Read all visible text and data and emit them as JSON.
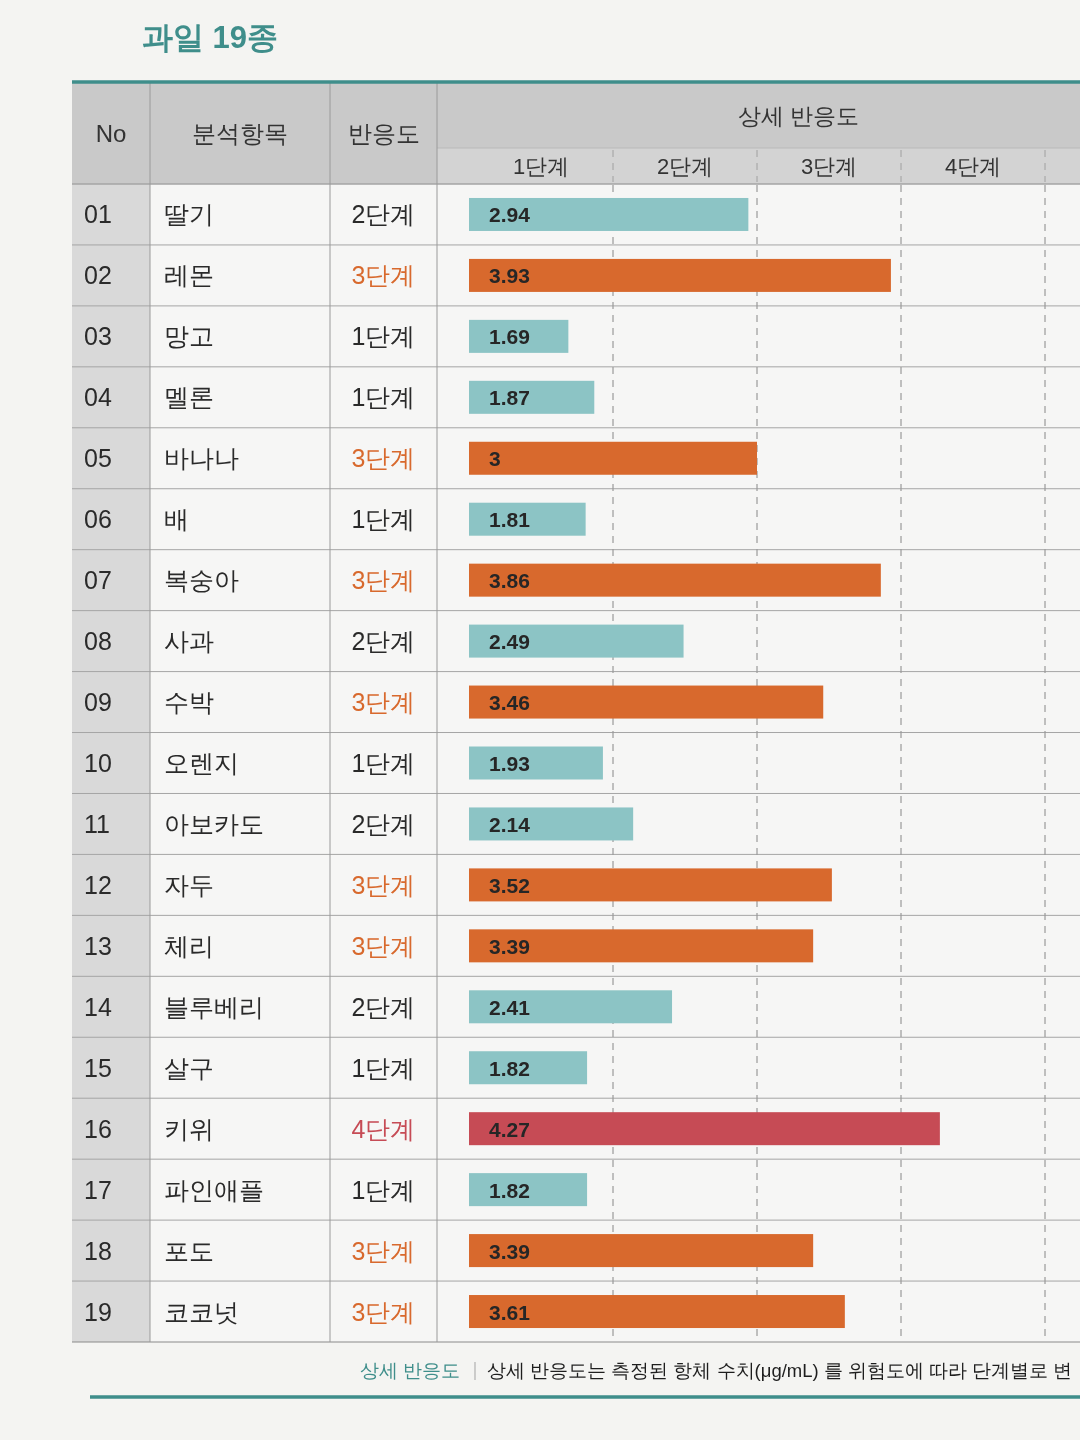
{
  "chart_data": {
    "type": "bar",
    "orientation": "horizontal",
    "title": "과일 19종",
    "xlabel": "상세 반응도",
    "ylabel": "분석항목",
    "categories": [
      "딸기",
      "레몬",
      "망고",
      "멜론",
      "바나나",
      "배",
      "복숭아",
      "사과",
      "수박",
      "오렌지",
      "아보카도",
      "자두",
      "체리",
      "블루베리",
      "살구",
      "키위",
      "파인애플",
      "포도",
      "코코넛"
    ],
    "values": [
      2.94,
      3.93,
      1.69,
      1.87,
      3,
      1.81,
      3.86,
      2.49,
      3.46,
      1.93,
      2.14,
      3.52,
      3.39,
      2.41,
      1.82,
      4.27,
      1.82,
      3.39,
      3.61
    ],
    "colors": [
      "#8cc4c5",
      "#d8692d",
      "#8cc4c5",
      "#8cc4c5",
      "#d8692d",
      "#8cc4c5",
      "#d8692d",
      "#8cc4c5",
      "#d8692d",
      "#8cc4c5",
      "#8cc4c5",
      "#d8692d",
      "#d8692d",
      "#8cc4c5",
      "#8cc4c5",
      "#c64b55",
      "#8cc4c5",
      "#d8692d",
      "#d8692d"
    ],
    "xlim": [
      1,
      5
    ],
    "ref_lines": [
      {
        "axis": "x",
        "value": 2,
        "line_style": "dashed"
      },
      {
        "axis": "x",
        "value": 3,
        "line_style": "dashed"
      },
      {
        "axis": "x",
        "value": 4,
        "line_style": "dashed"
      },
      {
        "axis": "x",
        "value": 5,
        "line_style": "dashed"
      }
    ],
    "data_labels": true,
    "annotations": [
      "No",
      "반응도",
      "1단계",
      "2단계",
      "3단계",
      "4단계",
      "01",
      "02",
      "03",
      "04",
      "05",
      "06",
      "07",
      "08",
      "09",
      "10",
      "11",
      "12",
      "13",
      "14",
      "15",
      "16",
      "17",
      "18",
      "19",
      "2단계",
      "3단계",
      "1단계",
      "1단계",
      "3단계",
      "1단계",
      "3단계",
      "2단계",
      "3단계",
      "1단계",
      "2단계",
      "3단계",
      "3단계",
      "2단계",
      "1단계",
      "4단계",
      "1단계",
      "3단계",
      "3단계",
      "상세 반응도",
      "상세 반응도는 측정된 항체 수치(μg/mL) 를 위험도에 따라 단계별로 변"
    ]
  }
}
